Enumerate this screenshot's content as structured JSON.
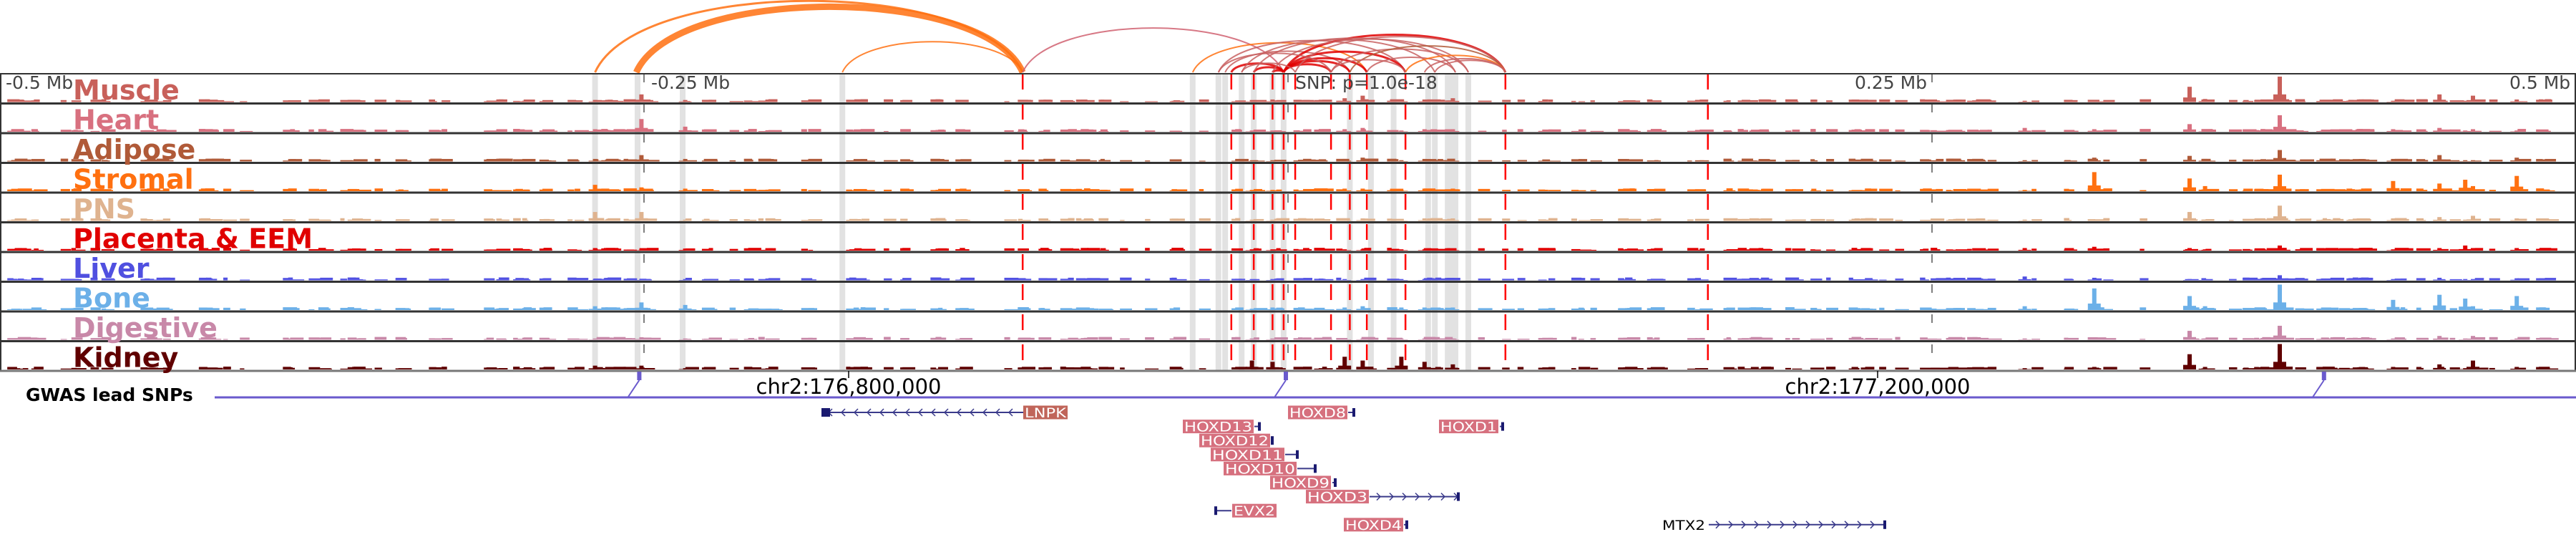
{
  "axis": {
    "left_label": "-0.5 Mb",
    "left_mid_label": "-0.25 Mb",
    "snp_label": "SNP: p=1.0e-18",
    "right_mid_label": "0.25 Mb",
    "right_label": "0.5 Mb"
  },
  "tracks": [
    {
      "label": "Muscle",
      "color": "#c8605a",
      "peaks": [
        0.08,
        0.3,
        0.08,
        0.08,
        0.1,
        0.15,
        0.25,
        0.1,
        0.1,
        0.15,
        0.05,
        0.05,
        0.6,
        0.12,
        1,
        0.05,
        0.3,
        0.05,
        0.25,
        0.1
      ]
    },
    {
      "label": "Heart",
      "color": "#d8707f",
      "peaks": [
        0.1,
        0.5,
        0.2,
        0.05,
        0.05,
        0.1,
        0.15,
        0.05,
        0.1,
        0.1,
        0.15,
        0.1,
        0.3,
        0.05,
        0.65,
        0.1,
        0.15,
        0.05,
        0.1,
        0.05
      ]
    },
    {
      "label": "Adipose",
      "color": "#b05a38",
      "peaks": [
        0.1,
        0.25,
        0.1,
        0.05,
        0.05,
        0.1,
        0.15,
        0.05,
        0.1,
        0.1,
        0.05,
        0.15,
        0.22,
        0.1,
        0.45,
        0.1,
        0.25,
        0.05,
        0.05,
        0.15
      ]
    },
    {
      "label": "Stromal",
      "color": "#ff7010",
      "peaks": [
        0.25,
        0.15,
        0.1,
        0.05,
        0.05,
        0.1,
        0.1,
        0.05,
        0.1,
        0.1,
        0.05,
        0.75,
        0.5,
        0.2,
        0.65,
        0.4,
        0.3,
        0.45,
        0.2,
        0.6
      ]
    },
    {
      "label": "PNS",
      "color": "#dfb38f",
      "peaks": [
        0.35,
        0.35,
        0.05,
        0.05,
        0.05,
        0.1,
        0.1,
        0.05,
        0.1,
        0.1,
        0.05,
        0.05,
        0.35,
        0.05,
        0.6,
        0.1,
        0.15,
        0.05,
        0.2,
        0.1
      ]
    },
    {
      "label": "Placenta & EEM",
      "color": "#e00000",
      "peaks": [
        0.1,
        0.05,
        0.08,
        0.05,
        0.05,
        0.05,
        0.05,
        0.05,
        0.05,
        0.05,
        0.1,
        0.15,
        0.1,
        0.05,
        0.2,
        0.05,
        0.1,
        0.2,
        0.1,
        0.1
      ]
    },
    {
      "label": "Liver",
      "color": "#5050e0",
      "peaks": [
        0.05,
        0.05,
        0.05,
        0.05,
        0.05,
        0.05,
        0.05,
        0.05,
        0.05,
        0.05,
        0.15,
        0.1,
        0.05,
        0.05,
        0.2,
        0.05,
        0.1,
        0.05,
        0.05,
        0.08
      ]
    },
    {
      "label": "Bone",
      "color": "#6cb0e8",
      "peaks": [
        0.15,
        0.3,
        0.2,
        0.05,
        0.1,
        0.1,
        0.15,
        0.1,
        0.1,
        0.1,
        0.15,
        0.85,
        0.55,
        0.15,
        1,
        0.4,
        0.6,
        0.45,
        0.15,
        0.55
      ]
    },
    {
      "label": "Digestive",
      "color": "#c888a8",
      "peaks": [
        0.05,
        0.1,
        0.05,
        0.05,
        0.05,
        0.05,
        0.05,
        0.05,
        0.05,
        0.05,
        0.05,
        0.05,
        0.35,
        0.05,
        0.55,
        0.05,
        0.15,
        0.05,
        0.15,
        0.05
      ]
    },
    {
      "label": "Kidney",
      "color": "#600000",
      "peaks": [
        0.15,
        0.15,
        0.05,
        0.35,
        0.3,
        0.5,
        0.35,
        0.5,
        0.3,
        0.2,
        0.05,
        0.1,
        0.6,
        0.1,
        1,
        0.1,
        0.2,
        0.05,
        0.35,
        0.1
      ]
    }
  ],
  "peak_positions_kb": [
    -269,
    -251,
    -234,
    -14,
    -6,
    22,
    29,
    44,
    53,
    64,
    286,
    313,
    350,
    356,
    385,
    429,
    447,
    457,
    460,
    477
  ],
  "highlight_kb": [
    -269,
    -252.5,
    -235,
    -173,
    -37,
    -27,
    -24.4,
    -18,
    -13.3,
    -6,
    -1.7,
    24,
    32.2,
    41,
    54.4,
    57,
    62,
    63.3,
    65,
    70
  ],
  "loop_anchor_kb": [
    -103,
    -22,
    -13.3,
    -6,
    -1.7,
    2.8,
    16.7,
    24,
    30.6,
    45.6,
    84.4,
    163
  ],
  "loops": [
    {
      "from": -269,
      "to": -103,
      "color": "#ff7010",
      "w": 3
    },
    {
      "from": -253,
      "to": -103,
      "color": "#ff7010",
      "w": 9
    },
    {
      "from": -173,
      "to": -103,
      "color": "#ff7010",
      "w": 2
    },
    {
      "from": -103,
      "to": -1.7,
      "color": "#d06070",
      "w": 2
    },
    {
      "from": -37,
      "to": 30.6,
      "color": "#ff7010",
      "w": 2
    },
    {
      "from": -27,
      "to": 45.6,
      "color": "#c86060",
      "w": 2
    },
    {
      "from": -24.4,
      "to": 24,
      "color": "#c86060",
      "w": 2
    },
    {
      "from": -22,
      "to": -1.7,
      "color": "#e00000",
      "w": 3
    },
    {
      "from": -13.3,
      "to": -1.7,
      "color": "#e00000",
      "w": 3
    },
    {
      "from": -6,
      "to": -1.7,
      "color": "#e00000",
      "w": 3
    },
    {
      "from": -1.7,
      "to": 16.7,
      "color": "#e00000",
      "w": 3
    },
    {
      "from": -1.7,
      "to": 24,
      "color": "#e00000",
      "w": 3
    },
    {
      "from": -1.7,
      "to": 30.6,
      "color": "#e00000",
      "w": 3
    },
    {
      "from": -1.7,
      "to": 45.6,
      "color": "#e00000",
      "w": 3
    },
    {
      "from": -1.7,
      "to": 84.4,
      "color": "#e00000",
      "w": 3
    },
    {
      "from": -18,
      "to": 57,
      "color": "#c86060",
      "w": 2
    },
    {
      "from": -13.3,
      "to": 65,
      "color": "#c86060",
      "w": 2
    },
    {
      "from": -6,
      "to": 70,
      "color": "#c86060",
      "w": 2
    },
    {
      "from": 2.8,
      "to": 84.4,
      "color": "#c86060",
      "w": 2
    },
    {
      "from": 16.7,
      "to": 70,
      "color": "#c86060",
      "w": 2
    },
    {
      "from": 24,
      "to": 84.4,
      "color": "#b05a38",
      "w": 2
    },
    {
      "from": 30.6,
      "to": 65,
      "color": "#c86060",
      "w": 2
    },
    {
      "from": 45.6,
      "to": 84.4,
      "color": "#ff7010",
      "w": 2
    },
    {
      "from": 53,
      "to": 84.4,
      "color": "#c86060",
      "w": 2
    },
    {
      "from": -27,
      "to": 16.7,
      "color": "#c86060",
      "w": 2
    },
    {
      "from": -18,
      "to": 2.8,
      "color": "#c86060",
      "w": 2
    },
    {
      "from": 16.7,
      "to": 45.6,
      "color": "#c86060",
      "w": 2
    },
    {
      "from": 57,
      "to": 84.4,
      "color": "#c86060",
      "w": 2
    }
  ],
  "gwas": {
    "label": "GWAS lead SNPs",
    "color": "#6a5acd",
    "snp_kb": [
      -251,
      0,
      403
    ]
  },
  "coordinates": {
    "left": "chr2:176,800,000",
    "right": "chr2:177,200,000"
  },
  "genes": [
    {
      "name": "LNPK",
      "strand": "-"
    },
    {
      "name": "HOXD8",
      "strand": "+"
    },
    {
      "name": "HOXD13",
      "strand": "+"
    },
    {
      "name": "HOXD1",
      "strand": "+"
    },
    {
      "name": "HOXD12",
      "strand": "+"
    },
    {
      "name": "HOXD11",
      "strand": "+"
    },
    {
      "name": "HOXD10",
      "strand": "+"
    },
    {
      "name": "HOXD9",
      "strand": "+"
    },
    {
      "name": "HOXD3",
      "strand": "+"
    },
    {
      "name": "EVX2",
      "strand": "-"
    },
    {
      "name": "HOXD4",
      "strand": "+"
    },
    {
      "name": "MTX2",
      "strand": "+"
    }
  ]
}
